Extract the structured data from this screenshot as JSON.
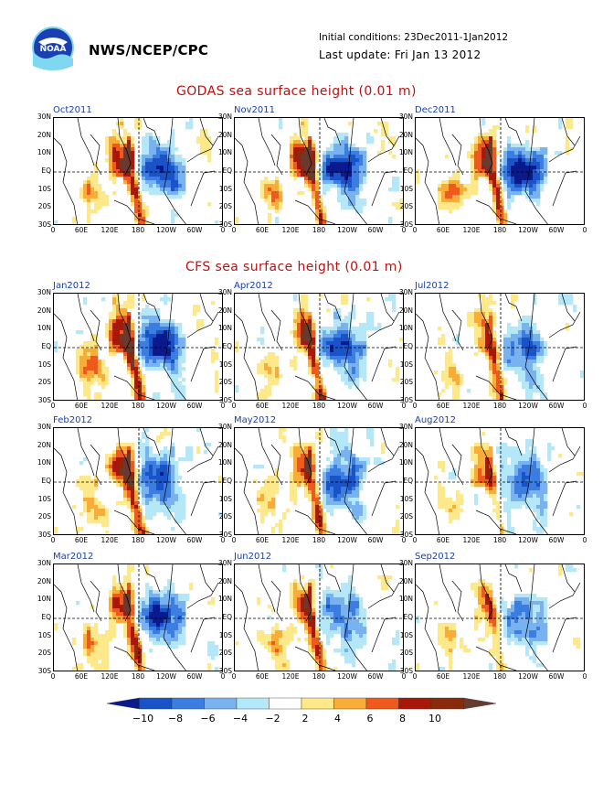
{
  "header": {
    "org": "NWS/NCEP/CPC",
    "initial_conditions": "Initial conditions: 23Dec2011-1Jan2012",
    "last_update": "Last update: Fri Jan 13 2012",
    "logo_text": "NOAA"
  },
  "godas": {
    "title": "GODAS sea surface height (0.01 m)",
    "panels": [
      {
        "label": "Oct2011"
      },
      {
        "label": "Nov2011"
      },
      {
        "label": "Dec2011"
      }
    ]
  },
  "cfs": {
    "title": "CFS sea surface height (0.01 m)",
    "panels": [
      {
        "label": "Jan2012"
      },
      {
        "label": "Apr2012"
      },
      {
        "label": "Jul2012"
      },
      {
        "label": "Feb2012"
      },
      {
        "label": "May2012"
      },
      {
        "label": "Aug2012"
      },
      {
        "label": "Mar2012"
      },
      {
        "label": "Jun2012"
      },
      {
        "label": "Sep2012"
      }
    ]
  },
  "axes": {
    "y_ticks": [
      "30N",
      "20N",
      "10N",
      "EQ",
      "10S",
      "20S",
      "30S"
    ],
    "x_ticks": [
      "0",
      "60E",
      "120E",
      "180",
      "120W",
      "60W",
      "0"
    ]
  },
  "colorbar": {
    "labels": [
      "-10",
      "-8",
      "-6",
      "-4",
      "-2",
      "2",
      "4",
      "6",
      "8",
      "10"
    ],
    "colors": [
      "#0a1a8c",
      "#1a52c8",
      "#3b7de0",
      "#78b2f0",
      "#b4e8f8",
      "#ffffff",
      "#fde98a",
      "#f9ac38",
      "#ef5a1c",
      "#a81808",
      "#8b2a0a",
      "#6b3a2e"
    ]
  }
}
